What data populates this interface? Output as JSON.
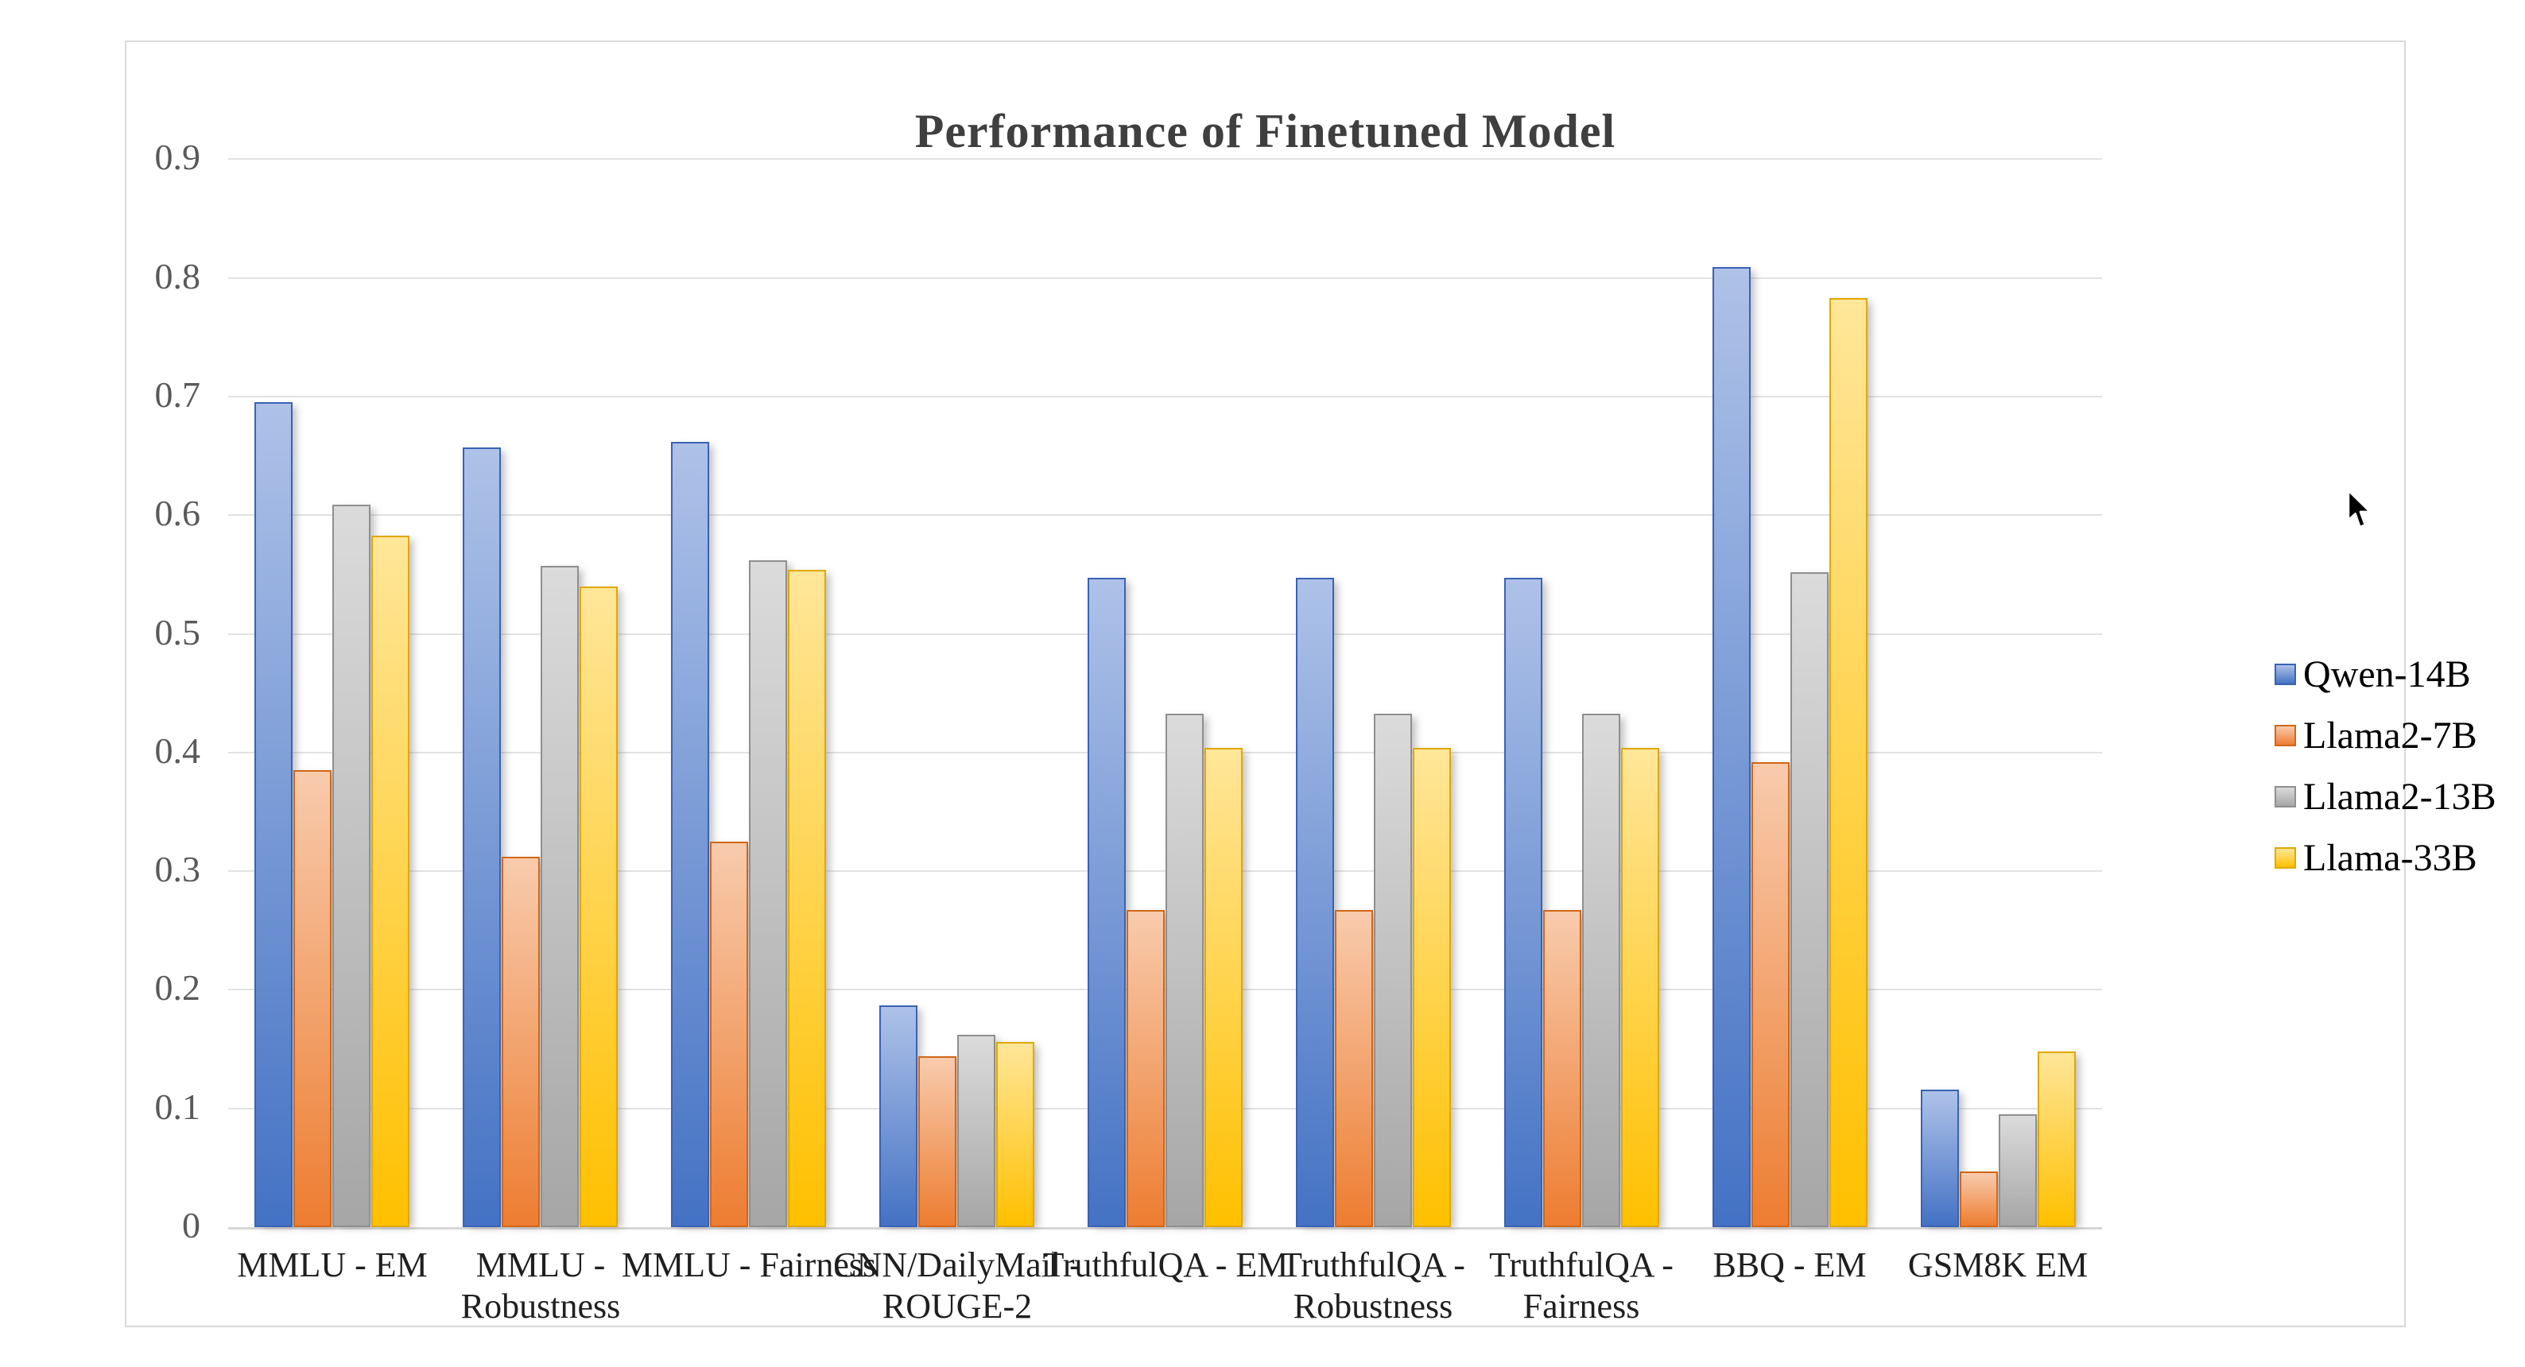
{
  "chart": {
    "title": "Performance of Finetuned Model"
  },
  "chart_data": {
    "type": "bar",
    "title": "Performance of Finetuned Model",
    "xlabel": "",
    "ylabel": "",
    "ylim": [
      0,
      0.9
    ],
    "ytick_step": 0.1,
    "yticks": [
      {
        "label": "0.9",
        "value": 0.9
      },
      {
        "label": "0.8",
        "value": 0.8
      },
      {
        "label": "0.7",
        "value": 0.7
      },
      {
        "label": "0.6",
        "value": 0.6
      },
      {
        "label": "0.5",
        "value": 0.5
      },
      {
        "label": "0.4",
        "value": 0.4
      },
      {
        "label": "0.3",
        "value": 0.3
      },
      {
        "label": "0.2",
        "value": 0.2
      },
      {
        "label": "0.1",
        "value": 0.1
      },
      {
        "label": "0",
        "value": 0
      }
    ],
    "grid": true,
    "legend_position": "right",
    "categories": [
      "MMLU - EM",
      "MMLU - Robustness",
      "MMLU - Fairness",
      "CNN/DailyMail - ROUGE-2",
      "TruthfulQA - EM",
      "TruthfulQA - Robustness",
      "TruthfulQA - Fairness",
      "BBQ - EM",
      "GSM8K EM"
    ],
    "category_label_lines": [
      [
        "MMLU - EM"
      ],
      [
        "MMLU -",
        "Robustness"
      ],
      [
        "MMLU - Fairness"
      ],
      [
        "CNN/DailyMail -",
        "ROUGE-2"
      ],
      [
        "TruthfulQA - EM"
      ],
      [
        "TruthfulQA -",
        "Robustness"
      ],
      [
        "TruthfulQA -",
        "Fairness"
      ],
      [
        "BBQ - EM"
      ],
      [
        "GSM8K EM"
      ]
    ],
    "series": [
      {
        "name": "Qwen-14B",
        "border_color": "#3a62b5",
        "fill_top": "#aec2e8",
        "fill_bottom": "#4472c4",
        "values": [
          0.695,
          0.657,
          0.662,
          0.187,
          0.547,
          0.547,
          0.547,
          0.809,
          0.116
        ]
      },
      {
        "name": "Llama2-7B",
        "border_color": "#d06717",
        "fill_top": "#f8cbad",
        "fill_bottom": "#ed7d31",
        "values": [
          0.385,
          0.312,
          0.325,
          0.144,
          0.267,
          0.267,
          0.267,
          0.392,
          0.047
        ]
      },
      {
        "name": "Llama2-13B",
        "border_color": "#8f8f8f",
        "fill_top": "#dbdbdb",
        "fill_bottom": "#a6a6a6",
        "values": [
          0.609,
          0.557,
          0.562,
          0.162,
          0.433,
          0.433,
          0.433,
          0.552,
          0.095
        ]
      },
      {
        "name": "Llama-33B",
        "border_color": "#e0a800",
        "fill_top": "#ffe699",
        "fill_bottom": "#ffc000",
        "values": [
          0.583,
          0.54,
          0.554,
          0.156,
          0.404,
          0.404,
          0.404,
          0.783,
          0.148
        ]
      }
    ]
  },
  "legend": {
    "items": [
      "Qwen-14B",
      "Llama2-7B",
      "Llama2-13B",
      "Llama-33B"
    ]
  }
}
